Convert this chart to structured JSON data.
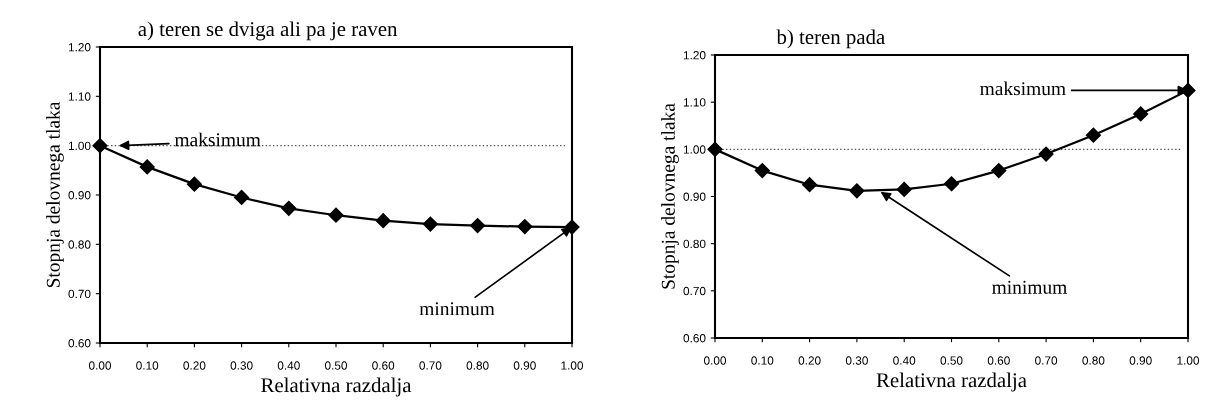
{
  "chart_data": [
    {
      "type": "line",
      "title": "a) teren se dviga ali pa je raven",
      "xlabel": "Relativna razdalja",
      "ylabel": "Stopnja delovnega tlaka",
      "x": [
        0,
        0.1,
        0.2,
        0.3,
        0.4,
        0.5,
        0.6,
        0.7,
        0.8,
        0.9,
        1.0
      ],
      "series": [
        {
          "color": "#000000",
          "values": [
            1.0,
            0.957,
            0.922,
            0.895,
            0.873,
            0.859,
            0.848,
            0.841,
            0.838,
            0.836,
            0.835
          ]
        }
      ],
      "xlim": [
        0,
        1
      ],
      "ylim": [
        0.6,
        1.2
      ],
      "xticks": [
        {
          "value": 0,
          "label": "0.00"
        },
        {
          "value": 0.1,
          "label": "0.10"
        },
        {
          "value": 0.2,
          "label": "0.20"
        },
        {
          "value": 0.3,
          "label": "0.30"
        },
        {
          "value": 0.4,
          "label": "0.40"
        },
        {
          "value": 0.5,
          "label": "0.50"
        },
        {
          "value": 0.6,
          "label": "0.60"
        },
        {
          "value": 0.7,
          "label": "0.70"
        },
        {
          "value": 0.8,
          "label": "0.80"
        },
        {
          "value": 0.9,
          "label": "0.90"
        },
        {
          "value": 1.0,
          "label": "1.00"
        }
      ],
      "yticks": [
        {
          "value": 0.6,
          "label": "0.60"
        },
        {
          "value": 0.7,
          "label": "0.70"
        },
        {
          "value": 0.8,
          "label": "0.80"
        },
        {
          "value": 0.9,
          "label": "0.90"
        },
        {
          "value": 1.0,
          "label": "1.00"
        },
        {
          "value": 1.1,
          "label": "1.10"
        },
        {
          "value": 1.2,
          "label": "1.20"
        }
      ],
      "ref_lines": [
        {
          "axis": "y",
          "value": 1.0,
          "color": "#555555",
          "line_style": "dotted"
        }
      ],
      "annotations": [
        {
          "text": "maksimum",
          "x": 0.04,
          "y": 1.0
        },
        {
          "text": "minimum",
          "x": 1.0,
          "y": 0.835
        }
      ],
      "marker": "diamond",
      "line_style": "solid",
      "grid": false
    },
    {
      "type": "line",
      "title": "b) teren pada",
      "xlabel": "Relativna razdalja",
      "ylabel": "Stopnja delovnega tlaka",
      "x": [
        0,
        0.1,
        0.2,
        0.3,
        0.4,
        0.5,
        0.6,
        0.7,
        0.8,
        0.9,
        1.0
      ],
      "series": [
        {
          "color": "#000000",
          "values": [
            1.0,
            0.955,
            0.925,
            0.912,
            0.915,
            0.927,
            0.955,
            0.99,
            1.03,
            1.075,
            1.125
          ]
        }
      ],
      "xlim": [
        0,
        1
      ],
      "ylim": [
        0.6,
        1.2
      ],
      "xticks": [
        {
          "value": 0,
          "label": "0.00"
        },
        {
          "value": 0.1,
          "label": "0.10"
        },
        {
          "value": 0.2,
          "label": "0.20"
        },
        {
          "value": 0.3,
          "label": "0.30"
        },
        {
          "value": 0.4,
          "label": "0.40"
        },
        {
          "value": 0.5,
          "label": "0.50"
        },
        {
          "value": 0.6,
          "label": "0.60"
        },
        {
          "value": 0.7,
          "label": "0.70"
        },
        {
          "value": 0.8,
          "label": "0.80"
        },
        {
          "value": 0.9,
          "label": "0.90"
        },
        {
          "value": 1.0,
          "label": "1.00"
        }
      ],
      "yticks": [
        {
          "value": 0.6,
          "label": "0.60"
        },
        {
          "value": 0.7,
          "label": "0.70"
        },
        {
          "value": 0.8,
          "label": "0.80"
        },
        {
          "value": 0.9,
          "label": "0.90"
        },
        {
          "value": 1.0,
          "label": "1.00"
        },
        {
          "value": 1.1,
          "label": "1.10"
        },
        {
          "value": 1.2,
          "label": "1.20"
        }
      ],
      "ref_lines": [
        {
          "axis": "y",
          "value": 1.0,
          "color": "#555555",
          "line_style": "dotted"
        }
      ],
      "annotations": [
        {
          "text": "maksimum",
          "x": 1.0,
          "y": 1.125
        },
        {
          "text": "minimum",
          "x": 0.35,
          "y": 0.91
        }
      ],
      "marker": "diamond",
      "line_style": "solid",
      "grid": false
    }
  ]
}
